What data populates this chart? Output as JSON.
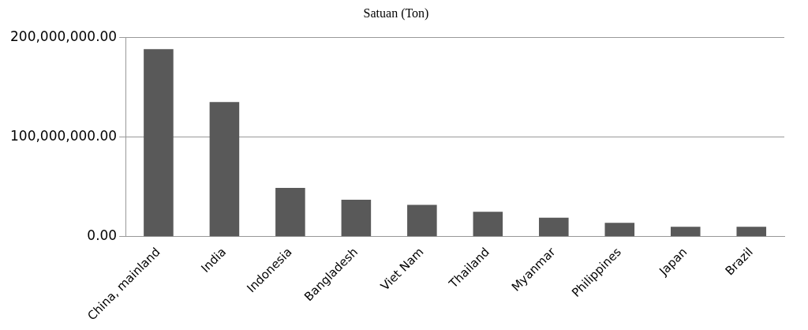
{
  "chart_data": {
    "type": "bar",
    "title": "Satuan (Ton)",
    "categories": [
      "China, mainland",
      "India",
      "Indonesia",
      "Bangladesh",
      "Viet Nam",
      "Thailand",
      "Myanmar",
      "Philippines",
      "Japan",
      "Brazil"
    ],
    "values": [
      188000000,
      135000000,
      49000000,
      37000000,
      32000000,
      25000000,
      19000000,
      14000000,
      10000000,
      10000000
    ],
    "color": "#595959",
    "ylim": [
      0,
      200000000
    ],
    "yticks": [
      {
        "value": 0,
        "label": "0.00"
      },
      {
        "value": 100000000,
        "label": "100,000,000.00"
      },
      {
        "value": 200000000,
        "label": "200,000,000.00"
      }
    ],
    "grid": "y",
    "legend": false
  }
}
